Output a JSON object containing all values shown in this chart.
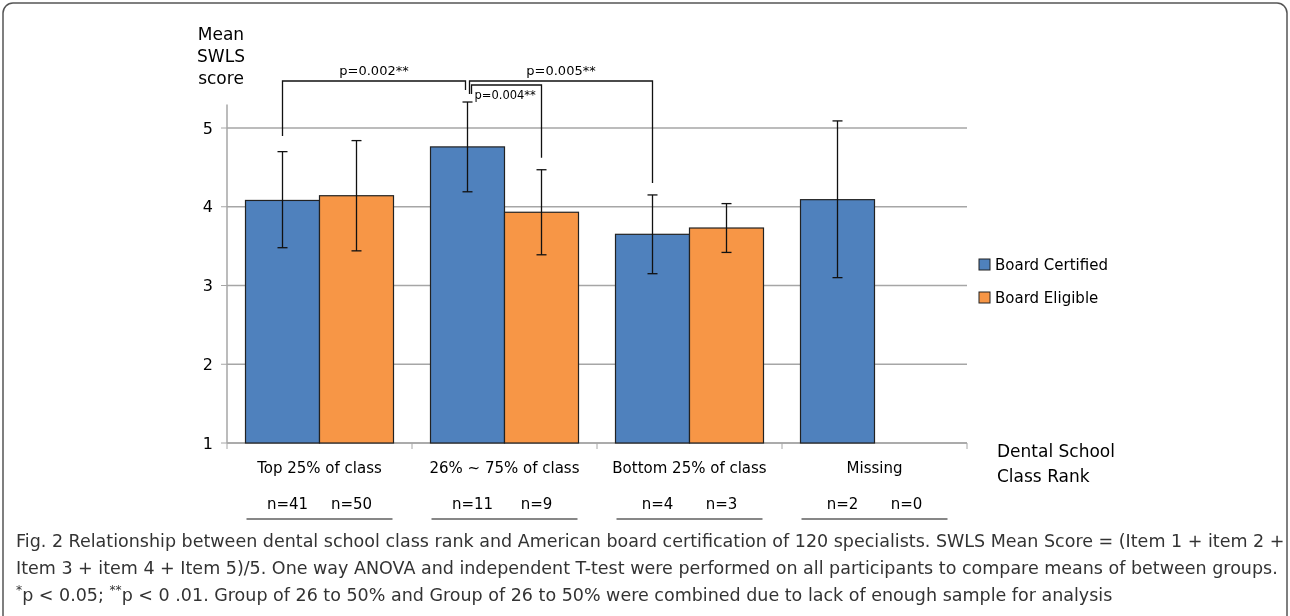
{
  "chart_data": {
    "type": "bar",
    "ylabel": "Mean SWLS score",
    "xlabel": "Dental School Class Rank",
    "categories": [
      "Top 25% of class",
      "26% ~ 75% of class",
      "Bottom 25% of class",
      "Missing"
    ],
    "series": [
      {
        "name": "Board Certified",
        "color": "#4f81bd",
        "values": [
          4.08,
          4.76,
          3.65,
          4.09
        ],
        "errors": [
          [
            3.48,
            4.7
          ],
          [
            4.19,
            5.33
          ],
          [
            3.15,
            4.15
          ],
          [
            3.1,
            5.09
          ]
        ]
      },
      {
        "name": "Board Eligible",
        "color": "#f79646",
        "values": [
          4.14,
          3.93,
          3.73,
          null
        ],
        "errors": [
          [
            3.44,
            4.84
          ],
          [
            3.39,
            4.47
          ],
          [
            3.42,
            4.04
          ],
          null
        ]
      }
    ],
    "ylim": [
      1,
      5.3
    ],
    "yticks": [
      1,
      2,
      3,
      4,
      5
    ],
    "grid": "y",
    "legend": "right",
    "annotations": [
      "p=0.002**",
      "p=0.004**",
      "p=0.005**",
      "n=41",
      "n=50",
      "n=11",
      "n=9",
      "n=4",
      "n=3",
      "n=2",
      "n=0",
      "Fig. 2 Relationship between dental school class rank and American board certification of 120 specialists. SWLS Mean Score = (Item 1 + item 2 +",
      "Item 3 + item 4 + Item 5)/5. One way ANOVA and independent T-test were performed on all participants to compare means of between groups.",
      "$^{*}$p < 0.05; $^{**}$p < 0 .01. Group of 26 to 50% and Group of 26 to 50% were combined due to lack of enough sample for analysis"
    ]
  }
}
